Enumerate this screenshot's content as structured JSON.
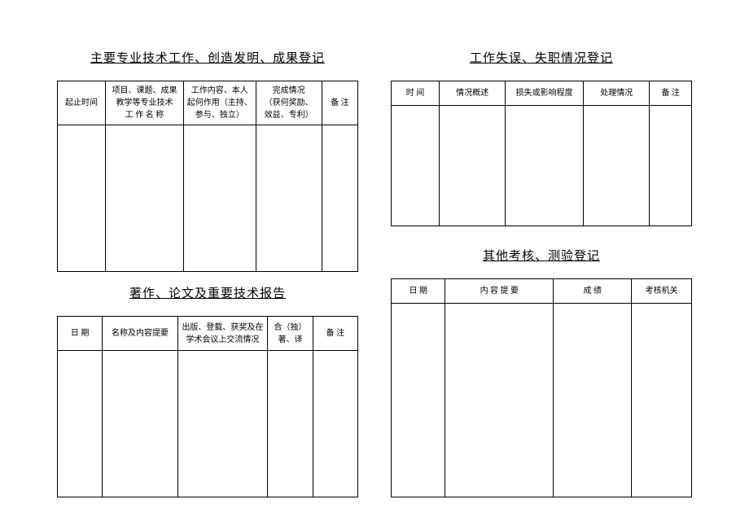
{
  "section1": {
    "title": "主要专业技术工作、创造发明、成果登记",
    "columns": [
      "起止时间",
      "项目、课题、成果\n教学等专业技术\n工 作 名 称",
      "工作内容、本人\n起何作用（主持、\n参与、独立）",
      "完成情况\n（获何奖励、\n效益、专利）",
      "备 注"
    ],
    "col_widths": [
      "16%",
      "26%",
      "24%",
      "22%",
      "12%"
    ]
  },
  "section2": {
    "title": "著作、论文及重要技术报告",
    "columns": [
      "日 期",
      "名称及内容提要",
      "出版、登载、获奖及在\n学术会议上交流情况",
      "合（独）\n著、译",
      "备 注"
    ],
    "col_widths": [
      "15%",
      "25%",
      "30%",
      "15%",
      "15%"
    ]
  },
  "section3": {
    "title": "工作失误、失职情况登记",
    "columns": [
      "时   间",
      "情况概述",
      "损失或影响程度",
      "处理情况",
      "备 注"
    ],
    "col_widths": [
      "16%",
      "22%",
      "26%",
      "22%",
      "14%"
    ]
  },
  "section4": {
    "title": "其他考核、测验登记",
    "columns": [
      "日   期",
      "内   容   提   要",
      "成       绩",
      "考核机关"
    ],
    "col_widths": [
      "18%",
      "36%",
      "26%",
      "20%"
    ]
  },
  "colors": {
    "border": "#000000",
    "background": "#ffffff",
    "text": "#000000"
  },
  "fontsize": {
    "title": 15,
    "cell": 10
  }
}
